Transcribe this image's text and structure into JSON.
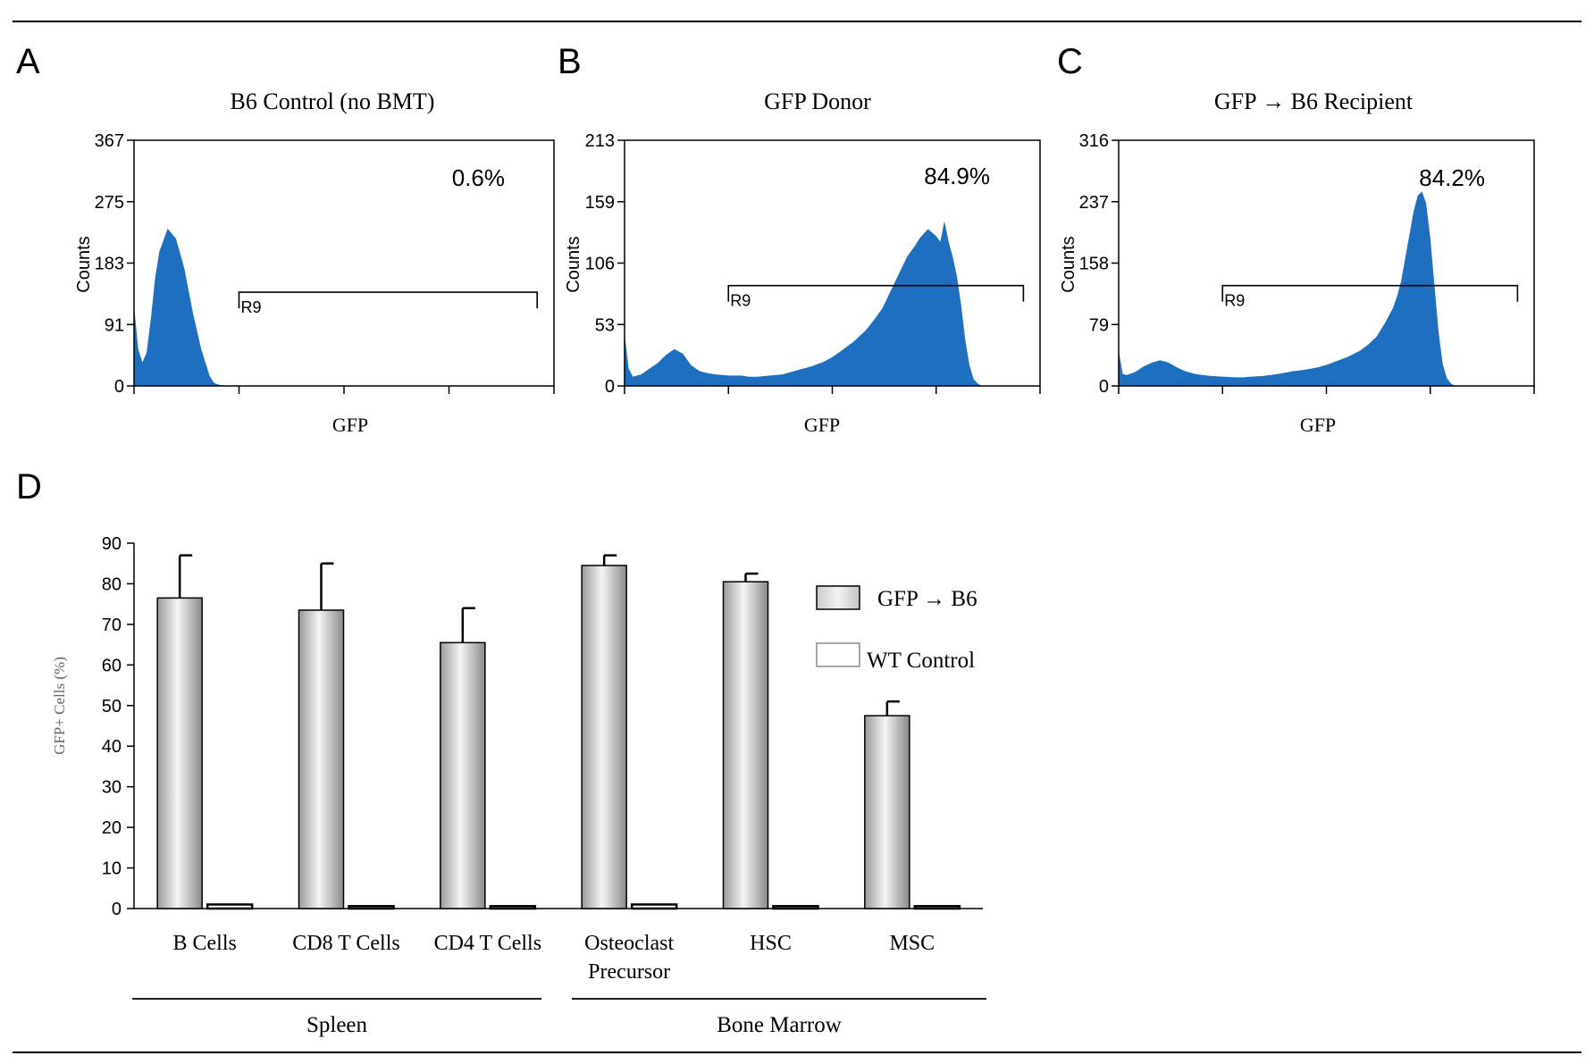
{
  "colors": {
    "histogram_fill": "#1f6fc0",
    "bar_fill": "#d8d8d8",
    "bar_stroke": "#000000",
    "control_fill": "#ffffff"
  },
  "chart_data": [
    {
      "panel": "A",
      "type": "area",
      "title": "B6 Control (no BMT)",
      "xlabel": "GFP",
      "ylabel": "Counts",
      "yticks": [
        "0",
        "91",
        "183",
        "275",
        "367"
      ],
      "ylim": [
        0,
        367
      ],
      "xlim": [
        0,
        1
      ],
      "gate": {
        "label": "R9",
        "x_start": 0.25,
        "x_end": 0.96,
        "y": 140
      },
      "percent_label": "0.6%",
      "curve": {
        "x": [
          0,
          0.01,
          0.02,
          0.03,
          0.04,
          0.05,
          0.06,
          0.08,
          0.1,
          0.12,
          0.14,
          0.16,
          0.18,
          0.19,
          0.2,
          0.22
        ],
        "y": [
          120,
          55,
          35,
          50,
          100,
          160,
          200,
          235,
          220,
          175,
          110,
          55,
          15,
          5,
          2,
          0
        ]
      }
    },
    {
      "panel": "B",
      "type": "area",
      "title": "GFP Donor",
      "xlabel": "GFP",
      "ylabel": "Counts",
      "yticks": [
        "0",
        "53",
        "106",
        "159",
        "213"
      ],
      "ylim": [
        0,
        213
      ],
      "xlim": [
        0,
        1
      ],
      "gate": {
        "label": "R9",
        "x_start": 0.25,
        "x_end": 0.96,
        "y": 87
      },
      "percent_label": "84.9%",
      "curve": {
        "x": [
          0,
          0.01,
          0.02,
          0.04,
          0.06,
          0.08,
          0.1,
          0.12,
          0.14,
          0.16,
          0.18,
          0.2,
          0.22,
          0.25,
          0.28,
          0.3,
          0.32,
          0.35,
          0.38,
          0.4,
          0.42,
          0.45,
          0.48,
          0.5,
          0.52,
          0.55,
          0.58,
          0.6,
          0.62,
          0.64,
          0.66,
          0.68,
          0.7,
          0.71,
          0.72,
          0.73,
          0.74,
          0.75,
          0.76,
          0.77,
          0.78,
          0.79,
          0.8,
          0.81,
          0.82,
          0.83,
          0.84,
          0.85,
          0.86
        ],
        "y": [
          45,
          15,
          8,
          10,
          15,
          20,
          27,
          32,
          28,
          18,
          13,
          11,
          10,
          9,
          9,
          8,
          8,
          9,
          10,
          12,
          14,
          17,
          21,
          25,
          30,
          38,
          48,
          57,
          67,
          82,
          97,
          112,
          122,
          128,
          132,
          136,
          133,
          130,
          125,
          143,
          125,
          112,
          95,
          70,
          40,
          18,
          6,
          2,
          0
        ]
      }
    },
    {
      "panel": "C",
      "type": "area",
      "title": "GFP → B6 Recipient",
      "xlabel": "GFP",
      "ylabel": "Counts",
      "yticks": [
        "0",
        "79",
        "158",
        "237",
        "316"
      ],
      "ylim": [
        0,
        316
      ],
      "xlim": [
        0,
        1
      ],
      "gate": {
        "label": "R9",
        "x_start": 0.25,
        "x_end": 0.96,
        "y": 129
      },
      "percent_label": "84.2%",
      "curve": {
        "x": [
          0,
          0.01,
          0.02,
          0.04,
          0.06,
          0.08,
          0.1,
          0.12,
          0.14,
          0.16,
          0.18,
          0.2,
          0.22,
          0.25,
          0.28,
          0.3,
          0.32,
          0.35,
          0.38,
          0.4,
          0.42,
          0.45,
          0.48,
          0.5,
          0.52,
          0.55,
          0.58,
          0.6,
          0.62,
          0.64,
          0.66,
          0.67,
          0.68,
          0.69,
          0.7,
          0.71,
          0.72,
          0.73,
          0.74,
          0.75,
          0.76,
          0.77,
          0.78,
          0.79,
          0.8,
          0.81
        ],
        "y": [
          45,
          15,
          14,
          18,
          25,
          30,
          33,
          30,
          24,
          19,
          16,
          14,
          13,
          12,
          11,
          11,
          12,
          13,
          15,
          17,
          19,
          21,
          24,
          27,
          31,
          37,
          45,
          53,
          63,
          80,
          100,
          115,
          135,
          165,
          195,
          225,
          245,
          250,
          235,
          190,
          130,
          70,
          28,
          10,
          3,
          0
        ]
      }
    },
    {
      "panel": "D",
      "type": "bar",
      "ylabel": "GFP+ Cells (%)",
      "ylim": [
        0,
        90
      ],
      "yticks": [
        "0",
        "10",
        "20",
        "30",
        "40",
        "50",
        "60",
        "70",
        "80",
        "90"
      ],
      "categories": [
        {
          "line1": "B Cells",
          "line2": ""
        },
        {
          "line1": "CD8 T Cells",
          "line2": ""
        },
        {
          "line1": "CD4 T Cells",
          "line2": ""
        },
        {
          "line1": "Osteoclast",
          "line2": "Precursor"
        },
        {
          "line1": "HSC",
          "line2": ""
        },
        {
          "line1": "MSC",
          "line2": ""
        }
      ],
      "series": [
        {
          "name": "GFP → B6",
          "values": [
            76.5,
            73.5,
            65.5,
            84.5,
            80.5,
            47.5
          ],
          "errors": [
            10.5,
            11.5,
            8.5,
            2.5,
            2,
            3.5
          ]
        },
        {
          "name": "WT Control",
          "values": [
            1,
            0.6,
            0.6,
            1,
            0.6,
            0.6
          ],
          "errors": [
            0,
            0,
            0,
            0,
            0,
            0
          ]
        }
      ],
      "groups": [
        {
          "label": "Spleen",
          "categories": [
            0,
            1,
            2
          ]
        },
        {
          "label": "Bone Marrow",
          "categories": [
            3,
            4,
            5
          ]
        }
      ],
      "legend_position": "right"
    }
  ]
}
